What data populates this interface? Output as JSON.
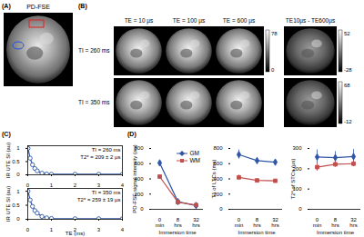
{
  "figure": {
    "panels": {
      "A": {
        "label": "(A)",
        "title": "PD-FSE"
      },
      "B": {
        "label": "(B)",
        "columns": [
          "TE = 10 µs",
          "TE = 100 µs",
          "TE = 600 µs",
          "TE10µs - TE600µs"
        ],
        "rows": [
          {
            "label": "TI = 260 ms",
            "image_colorbar": {
              "max": 78,
              "min": 0
            },
            "difference_colorbar": {
              "max": 52,
              "min": -28
            }
          },
          {
            "label": "TI = 350 ms",
            "image_colorbar": null,
            "difference_colorbar": {
              "max": 68,
              "min": -12
            }
          }
        ]
      },
      "C": {
        "label": "(C)"
      },
      "D": {
        "label": "(D)"
      }
    }
  },
  "chart_data": [
    {
      "type": "line",
      "y_label": "IR UTE SI (au)",
      "x": [
        0.01,
        0.1,
        0.2,
        0.3,
        0.4,
        0.6,
        0.8,
        1,
        2,
        3,
        4
      ],
      "xlim": [
        0,
        4
      ],
      "xticks": [
        0,
        1,
        2,
        3,
        4
      ],
      "ylim": [
        0,
        1.1
      ],
      "yticks": [
        0,
        0.5,
        1
      ],
      "annotations": [
        "TI = 260 ms",
        "T2* = 209 ± 2 µs"
      ],
      "series": [
        {
          "color": "#2f56a6",
          "marker": "circle-open",
          "values": [
            1.0,
            0.63,
            0.38,
            0.24,
            0.15,
            0.06,
            0.03,
            0.02,
            0.02,
            0.02,
            0.02
          ]
        }
      ]
    },
    {
      "type": "line",
      "y_label": "IR UTE SI (au)",
      "x_label": "TE (ms)",
      "x": [
        0.01,
        0.1,
        0.2,
        0.3,
        0.4,
        0.6,
        0.8,
        1,
        2,
        3,
        4
      ],
      "xlim": [
        0,
        4
      ],
      "xticks": [
        0,
        1,
        2,
        3,
        4
      ],
      "ylim": [
        0,
        1.1
      ],
      "yticks": [
        0,
        0.5,
        1
      ],
      "annotations": [
        "TI = 350 ms",
        "T2* = 259 ± 19 µs"
      ],
      "series": [
        {
          "color": "#2f56a6",
          "marker": "circle-open",
          "values": [
            1.0,
            0.69,
            0.46,
            0.31,
            0.22,
            0.1,
            0.05,
            0.03,
            0.02,
            0.02,
            0.02
          ]
        }
      ]
    },
    {
      "type": "line",
      "y_label": "PD-FSE signal intensity (au)",
      "x_label": "Immersion time",
      "categories": [
        "0 min",
        "8 hrs",
        "32 hrs"
      ],
      "ylim": [
        0,
        800
      ],
      "yticks": [
        0,
        200,
        400,
        600,
        800
      ],
      "legend": "top-right",
      "series": [
        {
          "name": "GM",
          "color": "#2f56a6",
          "marker": "diamond",
          "values": [
            610,
            100,
            50
          ]
        },
        {
          "name": "WM",
          "color": "#c0504d",
          "marker": "square",
          "values": [
            430,
            95,
            55
          ]
        }
      ]
    },
    {
      "type": "line",
      "y_label": "T1 of LTCs (ms)",
      "x_label": "Immersion time",
      "categories": [
        "0 min",
        "8 hrs",
        "32 hrs"
      ],
      "ylim": [
        0,
        800
      ],
      "yticks": [
        0,
        200,
        400,
        600,
        800
      ],
      "series": [
        {
          "name": "GM",
          "color": "#2f56a6",
          "marker": "diamond",
          "values": [
            720,
            640,
            620
          ],
          "errors": [
            60,
            40,
            30
          ]
        },
        {
          "name": "WM",
          "color": "#c0504d",
          "marker": "square",
          "values": [
            420,
            380,
            375
          ],
          "errors": [
            30,
            15,
            10
          ]
        }
      ]
    },
    {
      "type": "line",
      "y_label": "T2* of STCs (µs)",
      "x_label": "Immersion time",
      "categories": [
        "0 min",
        "8 hrs",
        "32 hrs"
      ],
      "ylim": [
        0,
        300
      ],
      "yticks": [
        0,
        100,
        200,
        300
      ],
      "series": [
        {
          "name": "GM",
          "color": "#2f56a6",
          "marker": "diamond",
          "values": [
            258,
            255,
            260
          ],
          "errors": [
            35,
            30,
            35
          ]
        },
        {
          "name": "WM",
          "color": "#c0504d",
          "marker": "square",
          "values": [
            208,
            222,
            225
          ],
          "errors": [
            20,
            15,
            15
          ]
        }
      ]
    }
  ]
}
